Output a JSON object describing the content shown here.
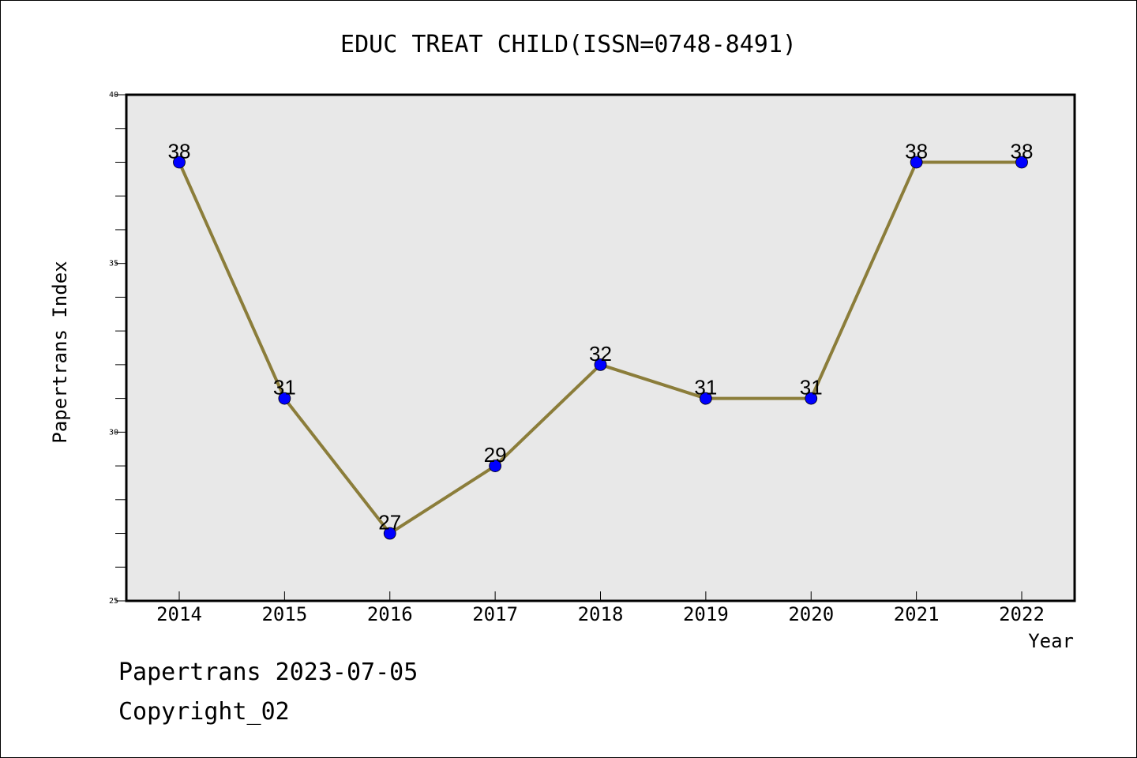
{
  "chart_data": {
    "type": "line",
    "title": "EDUC TREAT CHILD(ISSN=0748-8491)",
    "xlabel": "Year",
    "ylabel": "Papertrans Index",
    "categories": [
      "2014",
      "2015",
      "2016",
      "2017",
      "2018",
      "2019",
      "2020",
      "2021",
      "2022"
    ],
    "values": [
      38,
      31,
      27,
      29,
      32,
      31,
      31,
      38,
      38
    ],
    "ylim": [
      25,
      40
    ],
    "yticks": [
      25,
      30,
      35,
      40
    ],
    "grid": false,
    "colors": {
      "line": "#8B7D3A",
      "marker": "#0000FF",
      "plot_bg": "#E8E8E8"
    }
  },
  "footer": {
    "date_line": "Papertrans 2023-07-05",
    "copyright_line": "Copyright_02"
  }
}
